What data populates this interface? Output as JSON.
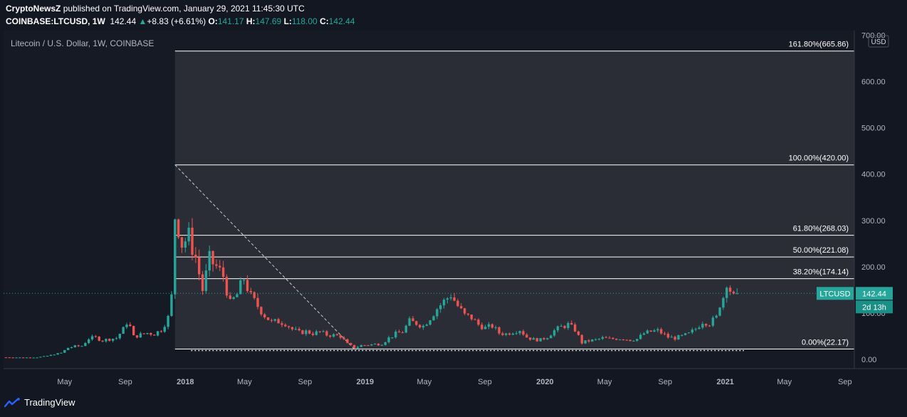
{
  "header": {
    "publisher": "CryptoNewsZ",
    "published_text": "published on TradingView.com, January 29, 2021 11:45:30 UTC",
    "symbol": "COINBASE:LTCUSD, 1W",
    "price": "142.44",
    "change_arrow": "▲",
    "change": "+8.83 (+6.61%)",
    "open_label": "O:",
    "open": "141.17",
    "high_label": "H:",
    "high": "147.69",
    "low_label": "L:",
    "low": "118.00",
    "close_label": "C:",
    "close": "142.44"
  },
  "chart_title": "Litecoin / U.S. Dollar, 1W, COINBASE",
  "currency_label": "USD",
  "price_tag": {
    "symbol": "LTCUSD",
    "value": "142.44",
    "countdown": "2d 13h"
  },
  "footer": {
    "brand": "TradingView"
  },
  "colors": {
    "background": "#131722",
    "up": "#26a69a",
    "down": "#ef5350",
    "text": "#d1d4dc",
    "range_fill": "#2a2d36"
  },
  "chart_data": {
    "type": "candlestick",
    "interval": "1W",
    "ylim": [
      -20,
      710
    ],
    "y_ticks": [
      0,
      100,
      200,
      300,
      400,
      500,
      600,
      700
    ],
    "y_tick_labels": [
      "0.00",
      "100.00",
      "200.00",
      "300.00",
      "400.00",
      "500.00",
      "600.00",
      "700.00"
    ],
    "x_tick_labels": [
      "May",
      "Sep",
      "2018",
      "May",
      "Sep",
      "2019",
      "May",
      "Sep",
      "2020",
      "May",
      "Sep",
      "2021",
      "May",
      "Sep"
    ],
    "x_tick_dates": [
      "2017-05-01",
      "2017-09-01",
      "2018-01-01",
      "2018-05-01",
      "2018-09-01",
      "2019-01-01",
      "2019-05-01",
      "2019-09-01",
      "2020-01-01",
      "2020-05-01",
      "2020-09-01",
      "2021-01-01",
      "2021-05-01",
      "2021-09-01"
    ],
    "x_range": [
      "2016-12-28",
      "2021-09-20"
    ],
    "fibonacci": {
      "start": {
        "date": "2017-12-11",
        "price": 420.0
      },
      "end": {
        "date": "2018-12-10",
        "price": 22.17
      },
      "levels": [
        {
          "label": "161.80%(665.86)",
          "value": 665.86
        },
        {
          "label": "100.00%(420.00)",
          "value": 420.0
        },
        {
          "label": "61.80%(268.03)",
          "value": 268.03
        },
        {
          "label": "50.00%(221.08)",
          "value": 221.08
        },
        {
          "label": "38.20%(174.14)",
          "value": 174.14
        },
        {
          "label": "0.00%(22.17)",
          "value": 22.17
        }
      ]
    },
    "last_price": 142.44,
    "close_path": [
      [
        "2017-01-02",
        4.3
      ],
      [
        "2017-02-06",
        3.9
      ],
      [
        "2017-03-06",
        4.2
      ],
      [
        "2017-03-27",
        7.5
      ],
      [
        "2017-04-10",
        11
      ],
      [
        "2017-04-24",
        14
      ],
      [
        "2017-05-08",
        25
      ],
      [
        "2017-05-22",
        28
      ],
      [
        "2017-06-05",
        29
      ],
      [
        "2017-06-19",
        45
      ],
      [
        "2017-07-03",
        47
      ],
      [
        "2017-07-17",
        41
      ],
      [
        "2017-07-31",
        44
      ],
      [
        "2017-08-14",
        46
      ],
      [
        "2017-08-28",
        65
      ],
      [
        "2017-09-04",
        80
      ],
      [
        "2017-09-11",
        70
      ],
      [
        "2017-09-18",
        49
      ],
      [
        "2017-10-02",
        53
      ],
      [
        "2017-10-16",
        57
      ],
      [
        "2017-10-30",
        55
      ],
      [
        "2017-11-13",
        64
      ],
      [
        "2017-11-27",
        90
      ],
      [
        "2017-12-04",
        135
      ],
      [
        "2017-12-11",
        310
      ],
      [
        "2017-12-18",
        285
      ],
      [
        "2017-12-25",
        250
      ],
      [
        "2018-01-08",
        265
      ],
      [
        "2018-01-22",
        220
      ],
      [
        "2018-02-05",
        150
      ],
      [
        "2018-02-19",
        215
      ],
      [
        "2018-03-05",
        200
      ],
      [
        "2018-03-19",
        180
      ],
      [
        "2018-04-02",
        120
      ],
      [
        "2018-04-16",
        140
      ],
      [
        "2018-04-30",
        175
      ],
      [
        "2018-05-14",
        135
      ],
      [
        "2018-05-28",
        115
      ],
      [
        "2018-06-11",
        95
      ],
      [
        "2018-06-25",
        80
      ],
      [
        "2018-07-09",
        82
      ],
      [
        "2018-07-23",
        78
      ],
      [
        "2018-08-06",
        65
      ],
      [
        "2018-08-20",
        58
      ],
      [
        "2018-09-03",
        60
      ],
      [
        "2018-09-17",
        56
      ],
      [
        "2018-10-01",
        59
      ],
      [
        "2018-10-15",
        53
      ],
      [
        "2018-10-29",
        52
      ],
      [
        "2018-11-12",
        50
      ],
      [
        "2018-11-26",
        33
      ],
      [
        "2018-12-10",
        25
      ],
      [
        "2018-12-24",
        30
      ],
      [
        "2019-01-14",
        32
      ],
      [
        "2019-02-04",
        34
      ],
      [
        "2019-02-18",
        46
      ],
      [
        "2019-03-04",
        55
      ],
      [
        "2019-03-18",
        60
      ],
      [
        "2019-04-01",
        82
      ],
      [
        "2019-04-15",
        78
      ],
      [
        "2019-04-29",
        72
      ],
      [
        "2019-05-13",
        90
      ],
      [
        "2019-05-27",
        110
      ],
      [
        "2019-06-10",
        125
      ],
      [
        "2019-06-24",
        140
      ],
      [
        "2019-07-08",
        115
      ],
      [
        "2019-07-22",
        95
      ],
      [
        "2019-08-05",
        90
      ],
      [
        "2019-08-19",
        75
      ],
      [
        "2019-09-02",
        68
      ],
      [
        "2019-09-16",
        72
      ],
      [
        "2019-09-30",
        57
      ],
      [
        "2019-10-14",
        55
      ],
      [
        "2019-10-28",
        60
      ],
      [
        "2019-11-11",
        64
      ],
      [
        "2019-11-25",
        48
      ],
      [
        "2019-12-09",
        43
      ],
      [
        "2019-12-23",
        42
      ],
      [
        "2020-01-06",
        49
      ],
      [
        "2020-01-20",
        62
      ],
      [
        "2020-02-03",
        70
      ],
      [
        "2020-02-17",
        75
      ],
      [
        "2020-03-02",
        64
      ],
      [
        "2020-03-16",
        36
      ],
      [
        "2020-03-30",
        40
      ],
      [
        "2020-04-13",
        42
      ],
      [
        "2020-04-27",
        46
      ],
      [
        "2020-05-11",
        44
      ],
      [
        "2020-05-25",
        45
      ],
      [
        "2020-06-08",
        45
      ],
      [
        "2020-06-22",
        42
      ],
      [
        "2020-07-06",
        44
      ],
      [
        "2020-07-20",
        56
      ],
      [
        "2020-08-03",
        60
      ],
      [
        "2020-08-17",
        62
      ],
      [
        "2020-09-07",
        48
      ],
      [
        "2020-09-21",
        46
      ],
      [
        "2020-10-05",
        50
      ],
      [
        "2020-10-19",
        55
      ],
      [
        "2020-11-02",
        66
      ],
      [
        "2020-11-16",
        82
      ],
      [
        "2020-11-30",
        78
      ],
      [
        "2020-12-14",
        90
      ],
      [
        "2020-12-21",
        120
      ],
      [
        "2020-12-28",
        135
      ],
      [
        "2021-01-04",
        170
      ],
      [
        "2021-01-11",
        150
      ],
      [
        "2021-01-18",
        133
      ],
      [
        "2021-01-25",
        142.44
      ]
    ]
  }
}
